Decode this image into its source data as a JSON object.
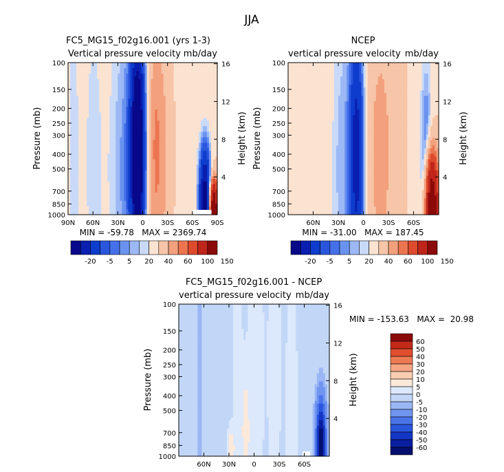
{
  "page": {
    "title": "JJA"
  },
  "colors": {
    "main_scale": [
      "#08088a",
      "#0a1fb0",
      "#0e3ccc",
      "#2a56de",
      "#4470ea",
      "#6a93f0",
      "#9cb8f5",
      "#c8daf8",
      "#fbe3d2",
      "#f7c5a8",
      "#f3a07c",
      "#ec7550",
      "#dd4a2c",
      "#c0251a",
      "#8b0a0a"
    ],
    "diff_scale": [
      "#050f6e",
      "#0a1fa0",
      "#1436c4",
      "#2a56de",
      "#4a74ea",
      "#7095f0",
      "#9ab6f5",
      "#c2d7f8",
      "#dce8fb",
      "#fde9da",
      "#f9cdb0",
      "#f4a683",
      "#ec7a55",
      "#e04e2f",
      "#c32a1a",
      "#8b0a0a"
    ],
    "nodata": "#ffffff"
  },
  "chart_data": [
    {
      "type": "heatmap",
      "title": "FC5_MG15_f02g16.001 (yrs 1-3)",
      "subtitle_left": "Vertical pressure velocity",
      "subtitle_right": "mb/day",
      "ylabel": "Pressure (mb)",
      "ylabel_right": "Height (km)",
      "x_ticks": [
        "90N",
        "60N",
        "30N",
        "0",
        "30S",
        "60S",
        "90S"
      ],
      "x_tick_values": [
        90,
        60,
        30,
        0,
        -30,
        -60,
        -90
      ],
      "xlim": [
        90,
        -90
      ],
      "y_ticks": [
        "100",
        "150",
        "200",
        "250",
        "300",
        "400",
        "500",
        "700",
        "850",
        "1000"
      ],
      "y_tick_values": [
        100,
        150,
        200,
        250,
        300,
        400,
        500,
        700,
        850,
        1000
      ],
      "ylim": [
        100,
        1000
      ],
      "y_scale": "log",
      "height_ticks": [
        "16",
        "12",
        "8",
        "4"
      ],
      "height_tick_values": [
        16,
        12,
        8,
        4
      ],
      "stats": "MIN = -59.78   MAX = 2369.74",
      "colorbar_labels": [
        "-20",
        "-5",
        "5",
        "20",
        "40",
        "60",
        "100",
        "150"
      ],
      "field": {
        "base": 9,
        "features": [
          {
            "lat": 6,
            "p": 380,
            "wlat": 6,
            "wlogp": 0.55,
            "amp": -55
          },
          {
            "lat": 20,
            "p": 500,
            "wlat": 14,
            "wlogp": 0.9,
            "amp": -10
          },
          {
            "lat": 60,
            "p": 450,
            "wlat": 10,
            "wlogp": 1.0,
            "amp": -5
          },
          {
            "lat": 84,
            "p": 400,
            "wlat": 5,
            "wlogp": 1.0,
            "amp": -6
          },
          {
            "lat": -20,
            "p": 400,
            "wlat": 8,
            "wlogp": 0.55,
            "amp": 19
          },
          {
            "lat": -14,
            "p": 320,
            "wlat": 4,
            "wlogp": 0.7,
            "amp": 8
          },
          {
            "lat": -75,
            "p": 800,
            "wlat": 5,
            "wlogp": 0.25,
            "amp": -45
          },
          {
            "lat": -86,
            "p": 930,
            "wlat": 3,
            "wlogp": 0.12,
            "amp": 150
          }
        ]
      },
      "missing": [
        {
          "lat_from": -60,
          "lat_to": -83,
          "p_from": 930,
          "p_to": 1000
        }
      ]
    },
    {
      "type": "heatmap",
      "title": "NCEP",
      "subtitle_left": "vertical pressure velocity",
      "subtitle_right": "mb/day",
      "ylabel": "Pressure (mb)",
      "ylabel_right": "Height (km)",
      "x_ticks": [
        "60N",
        "30N",
        "0",
        "30S",
        "60S"
      ],
      "x_tick_values": [
        60,
        30,
        0,
        -30,
        -60
      ],
      "xlim": [
        90,
        -90
      ],
      "y_ticks": [
        "100",
        "150",
        "200",
        "250",
        "300",
        "400",
        "500",
        "700",
        "850",
        "1000"
      ],
      "y_tick_values": [
        100,
        150,
        200,
        250,
        300,
        400,
        500,
        700,
        850,
        1000
      ],
      "ylim": [
        100,
        1000
      ],
      "y_scale": "log",
      "height_ticks": [
        "16",
        "12",
        "8",
        "4"
      ],
      "height_tick_values": [
        16,
        12,
        8,
        4
      ],
      "stats": "MIN = -31.00   MAX = 187.45",
      "colorbar_labels": [
        "-20",
        "-5",
        "5",
        "20",
        "40",
        "60",
        "100",
        "150"
      ],
      "field": {
        "base": 9,
        "features": [
          {
            "lat": 8,
            "p": 400,
            "wlat": 6,
            "wlogp": 0.6,
            "amp": -33
          },
          {
            "lat": 25,
            "p": 500,
            "wlat": 10,
            "wlogp": 0.9,
            "amp": -8
          },
          {
            "lat": -20,
            "p": 400,
            "wlat": 9,
            "wlogp": 0.55,
            "amp": 17
          },
          {
            "lat": -40,
            "p": 250,
            "wlat": 8,
            "wlogp": 0.8,
            "amp": 4
          },
          {
            "lat": -75,
            "p": 500,
            "wlat": 5,
            "wlogp": 0.5,
            "amp": -15
          },
          {
            "lat": -82,
            "p": 900,
            "wlat": 5,
            "wlogp": 0.22,
            "amp": 140
          }
        ]
      },
      "missing": []
    },
    {
      "type": "heatmap",
      "title": "FC5_MG15_f02g16.001 - NCEP",
      "subtitle_left": "vertical pressure velocity",
      "subtitle_right": "mb/day",
      "ylabel": "Pressure (mb)",
      "ylabel_right": "Height (km)",
      "x_ticks": [
        "60N",
        "30N",
        "0",
        "30S",
        "60S"
      ],
      "x_tick_values": [
        60,
        30,
        0,
        -30,
        -60
      ],
      "xlim": [
        90,
        -90
      ],
      "y_ticks": [
        "100",
        "150",
        "200",
        "250",
        "300",
        "400",
        "500",
        "700",
        "850",
        "1000"
      ],
      "y_tick_values": [
        100,
        150,
        200,
        250,
        300,
        400,
        500,
        700,
        850,
        1000
      ],
      "ylim": [
        100,
        1000
      ],
      "y_scale": "log",
      "height_ticks": [
        "16",
        "12",
        "8",
        "4"
      ],
      "height_tick_values": [
        16,
        12,
        8,
        4
      ],
      "stats": "MIN = -153.63   MAX =  20.98",
      "colorbar_labels": [
        "60",
        "50",
        "40",
        "30",
        "20",
        "10",
        "5",
        "0",
        "-5",
        "-10",
        "-20",
        "-30",
        "-40",
        "-50",
        "-60"
      ],
      "field": {
        "base": -2.5,
        "features": [
          {
            "lat": 20,
            "p": 450,
            "wlat": 4,
            "wlogp": 0.9,
            "amp": 5
          },
          {
            "lat": 10,
            "p": 700,
            "wlat": 3,
            "wlogp": 0.25,
            "amp": 11
          },
          {
            "lat": 28,
            "p": 900,
            "wlat": 3,
            "wlogp": 0.1,
            "amp": 12
          },
          {
            "lat": -2,
            "p": 300,
            "wlat": 10,
            "wlogp": 1.0,
            "amp": 4
          },
          {
            "lat": -25,
            "p": 250,
            "wlat": 5,
            "wlogp": 0.6,
            "amp": 6
          },
          {
            "lat": -45,
            "p": 500,
            "wlat": 6,
            "wlogp": 0.7,
            "amp": 5
          },
          {
            "lat": 65,
            "p": 400,
            "wlat": 3,
            "wlogp": 0.7,
            "amp": -5
          },
          {
            "lat": -80,
            "p": 850,
            "wlat": 4,
            "wlogp": 0.2,
            "amp": -70
          }
        ]
      },
      "missing": [
        {
          "lat_from": -58,
          "lat_to": -67,
          "p_from": 930,
          "p_to": 1000
        }
      ]
    }
  ]
}
